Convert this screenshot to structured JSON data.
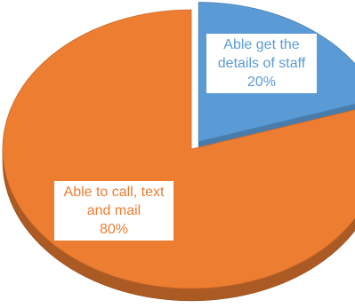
{
  "chart_data": {
    "type": "pie",
    "three_d": true,
    "exploded_slice": "Able get the details of staff",
    "categories": [
      "Able get the details of staff",
      "Able to call, text and mail"
    ],
    "values": [
      20,
      80
    ],
    "labels": [
      {
        "text": "Able get the details of staff",
        "percent": "20%"
      },
      {
        "text": "Able to call, text and mail",
        "percent": "80%"
      }
    ],
    "colors": [
      "#5B9BD5",
      "#ED7D31"
    ],
    "label_text_colors": [
      "#5B9BD5",
      "#ED7D31"
    ],
    "legend": "none",
    "title": ""
  }
}
